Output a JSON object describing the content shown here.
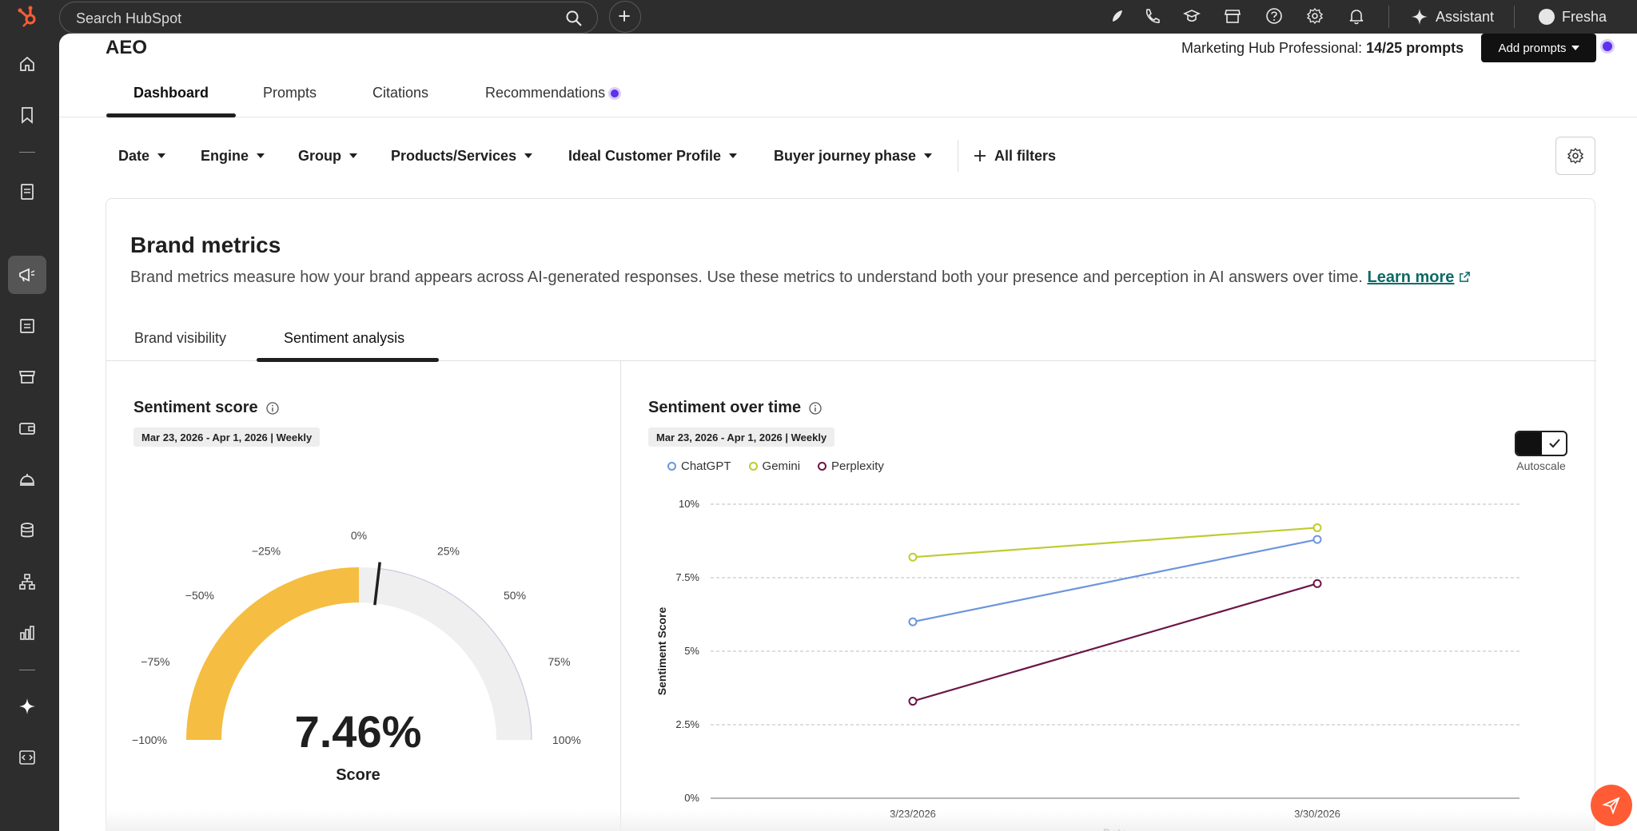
{
  "topbar": {
    "search_placeholder": "Search HubSpot",
    "assistant_label": "Assistant",
    "account_name": "Fresha",
    "icons": [
      "sparkle-leaf-icon",
      "phone-icon",
      "academy-icon",
      "marketplace-icon",
      "help-icon",
      "settings-icon",
      "notifications-icon"
    ]
  },
  "leftnav": {
    "items": [
      "home-icon",
      "bookmark-icon",
      "contacts-icon",
      "marketing-icon",
      "content-icon",
      "commerce-icon",
      "wallet-icon",
      "service-icon",
      "data-icon",
      "automation-icon",
      "reporting-icon",
      "ai-icon",
      "developer-icon"
    ],
    "active": "marketing-icon"
  },
  "header": {
    "title": "AEO",
    "plan_label": "Marketing Hub Professional:",
    "plan_value": "14/25 prompts",
    "add_prompts_label": "Add prompts"
  },
  "tabs": [
    {
      "label": "Dashboard",
      "active": true
    },
    {
      "label": "Prompts",
      "active": false
    },
    {
      "label": "Citations",
      "active": false
    },
    {
      "label": "Recommendations",
      "active": false
    }
  ],
  "filters": [
    "Date",
    "Engine",
    "Group",
    "Products/Services",
    "Ideal Customer Profile",
    "Buyer journey phase"
  ],
  "all_filters_label": "All filters",
  "brand_metrics": {
    "title": "Brand metrics",
    "description": "Brand metrics measure how your brand appears across AI-generated responses. Use these metrics to understand both your presence and perception in AI answers over time.",
    "learn_more": "Learn more",
    "sub_tabs": [
      {
        "label": "Brand visibility",
        "active": false
      },
      {
        "label": "Sentiment analysis",
        "active": true
      }
    ]
  },
  "sentiment_score": {
    "title": "Sentiment score",
    "date_range": "Mar 23, 2026 - Apr 1, 2026 | Weekly",
    "value": "7.46%",
    "value_number": 7.46,
    "label": "Score",
    "gauge_labels": [
      "−100%",
      "−75%",
      "−50%",
      "−25%",
      "0%",
      "25%",
      "50%",
      "75%",
      "100%"
    ],
    "fill_color": "#f5bd41"
  },
  "sentiment_over_time": {
    "title": "Sentiment over time",
    "date_range": "Mar 23, 2026 - Apr 1, 2026 | Weekly",
    "autoscale_label": "Autoscale",
    "autoscale_on": true
  },
  "chart_data": {
    "type": "line",
    "x": [
      "3/23/2026",
      "3/30/2026"
    ],
    "xlabel": "Date",
    "ylabel": "Sentiment Score",
    "ylim": [
      0,
      10
    ],
    "yticks": [
      0,
      2.5,
      5,
      7.5,
      10
    ],
    "ytick_labels": [
      "0%",
      "2.5%",
      "5%",
      "7.5%",
      "10%"
    ],
    "grid": true,
    "legend": "top-left",
    "series": [
      {
        "name": "ChatGPT",
        "color": "#6d95dc",
        "values": [
          6.0,
          8.8
        ]
      },
      {
        "name": "Gemini",
        "color": "#bfcb2e",
        "values": [
          8.2,
          9.2
        ]
      },
      {
        "name": "Perplexity",
        "color": "#6b1546",
        "values": [
          3.3,
          7.3
        ]
      }
    ]
  }
}
